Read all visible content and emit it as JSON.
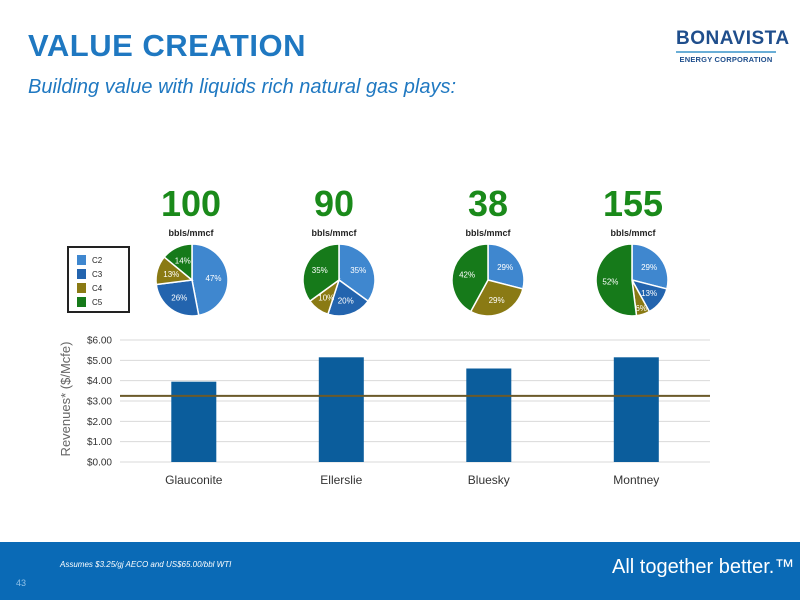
{
  "header": {
    "title": "VALUE CREATION",
    "subtitle": "Building value with liquids rich natural gas plays:"
  },
  "logo": {
    "name": "BONAVISTA",
    "tagline": "ENERGY CORPORATION"
  },
  "footer": {
    "footnote": "Assumes $3.25/gj AECO and US$65.00/bbl WTI",
    "page_number": "43",
    "slogan": "All together better.™"
  },
  "colors": {
    "brand_blue": "#1f78c1",
    "bar": "#0b5d9c",
    "threshold_line": "#6b5a2a",
    "number_green": "#1a8a1a",
    "footer": "#0a6ab6"
  },
  "chart_data": [
    {
      "type": "pie",
      "legend": [
        {
          "name": "C2",
          "color": "#3f87cf"
        },
        {
          "name": "C3",
          "color": "#2364ae"
        },
        {
          "name": "C4",
          "color": "#8a7a14"
        },
        {
          "name": "C5",
          "color": "#167a1a"
        }
      ],
      "pies": [
        {
          "label": "100",
          "unit": "bbls/mmcf",
          "slices": [
            {
              "name": "C2",
              "value": 47
            },
            {
              "name": "C3",
              "value": 26
            },
            {
              "name": "C4",
              "value": 13
            },
            {
              "name": "C5",
              "value": 14
            }
          ]
        },
        {
          "label": "90",
          "unit": "bbls/mmcf",
          "slices": [
            {
              "name": "C2",
              "value": 35
            },
            {
              "name": "C3",
              "value": 20
            },
            {
              "name": "C4",
              "value": 10
            },
            {
              "name": "C5",
              "value": 35
            }
          ]
        },
        {
          "label": "38",
          "unit": "bbls/mmcf",
          "slices": [
            {
              "name": "C2",
              "value": 29
            },
            {
              "name": "C3",
              "value": 0
            },
            {
              "name": "C4",
              "value": 29
            },
            {
              "name": "C5",
              "value": 42
            }
          ]
        },
        {
          "label": "155",
          "unit": "bbls/mmcf",
          "slices": [
            {
              "name": "C2",
              "value": 29
            },
            {
              "name": "C3",
              "value": 13
            },
            {
              "name": "C4",
              "value": 6
            },
            {
              "name": "C5",
              "value": 52
            }
          ]
        }
      ]
    },
    {
      "type": "bar",
      "categories": [
        "Glauconite",
        "Ellerslie",
        "Bluesky",
        "Montney"
      ],
      "values": [
        3.95,
        5.15,
        4.6,
        5.15
      ],
      "ylabel": "Revenues* ($/Mcfe)",
      "ylim": [
        0,
        6
      ],
      "yticks": [
        0,
        1,
        2,
        3,
        4,
        5,
        6
      ],
      "ytick_labels": [
        "$0.00",
        "$1.00",
        "$2.00",
        "$3.00",
        "$4.00",
        "$5.00",
        "$6.00"
      ],
      "reference_line": 3.25,
      "grid": true
    }
  ]
}
